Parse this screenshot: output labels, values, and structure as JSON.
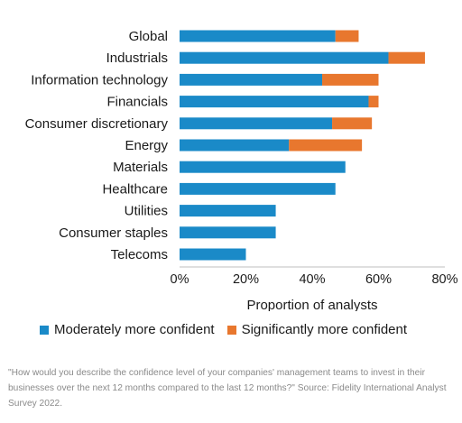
{
  "chart_data": {
    "type": "bar",
    "orientation": "horizontal",
    "stacked": true,
    "categories": [
      "Global",
      "Industrials",
      "Information technology",
      "Financials",
      "Consumer discretionary",
      "Energy",
      "Materials",
      "Healthcare",
      "Utilities",
      "Consumer staples",
      "Telecoms"
    ],
    "series": [
      {
        "name": "Moderately more confident",
        "color": "#1a8ac8",
        "values": [
          47,
          63,
          43,
          57,
          46,
          33,
          50,
          47,
          29,
          29,
          20
        ]
      },
      {
        "name": "Significantly more confident",
        "color": "#e8772e",
        "values": [
          7,
          11,
          17,
          3,
          12,
          22,
          0,
          0,
          0,
          0,
          0
        ]
      }
    ],
    "xlabel": "Proportion of analysts",
    "xlim": [
      0,
      80
    ],
    "xticks": [
      "0%",
      "20%",
      "40%",
      "60%",
      "80%"
    ],
    "grid": false,
    "legend_position": "bottom"
  },
  "source_note": "\"How would you describe the confidence level of your companies' management teams to invest in their businesses over the next 12 months compared to the last 12 months?\" Source: Fidelity International Analyst Survey 2022."
}
